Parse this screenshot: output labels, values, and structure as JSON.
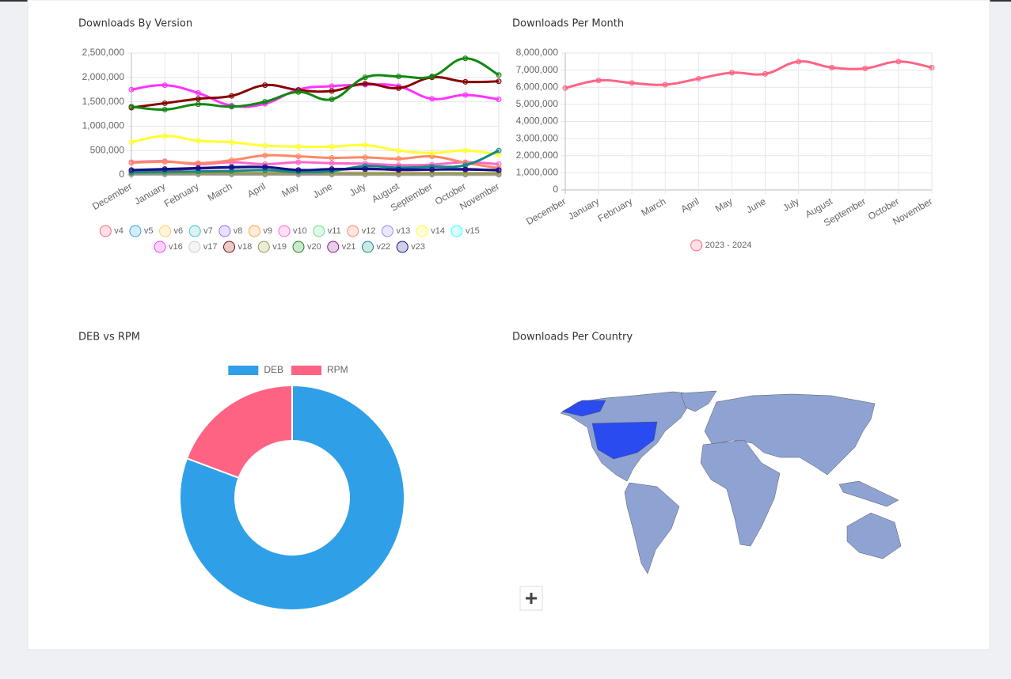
{
  "chart_data": [
    {
      "type": "line",
      "title": "Downloads By Version",
      "categories": [
        "December",
        "January",
        "February",
        "March",
        "April",
        "May",
        "June",
        "July",
        "August",
        "September",
        "October",
        "November"
      ],
      "ylim": [
        0,
        2500000
      ],
      "yticks": [
        0,
        {
          "value": 500000,
          "label": "500,000"
        },
        {
          "value": 1000000,
          "label": "1,000,000"
        },
        {
          "value": 1500000,
          "label": "1,500,000"
        },
        {
          "value": 2000000,
          "label": "2,000,000"
        },
        {
          "value": 2500000,
          "label": "2,500,000"
        }
      ],
      "grid": true,
      "legend": "bottom",
      "series": [
        {
          "name": "v4",
          "color": "#ff6384",
          "values": [
            10000,
            10000,
            10000,
            8000,
            8000,
            7000,
            6000,
            6000,
            5000,
            5000,
            5000,
            4000
          ]
        },
        {
          "name": "v5",
          "color": "#36a2eb",
          "values": [
            15000,
            15000,
            14000,
            13000,
            12000,
            12000,
            11000,
            10000,
            10000,
            9000,
            9000,
            8000
          ]
        },
        {
          "name": "v6",
          "color": "#ffcd56",
          "values": [
            20000,
            20000,
            19000,
            18000,
            17000,
            16000,
            15000,
            14000,
            13000,
            12000,
            12000,
            11000
          ]
        },
        {
          "name": "v7",
          "color": "#4bc0c0",
          "values": [
            25000,
            25000,
            24000,
            23000,
            22000,
            20000,
            19000,
            18000,
            17000,
            16000,
            15000,
            14000
          ]
        },
        {
          "name": "v8",
          "color": "#9966ff",
          "values": [
            30000,
            30000,
            29000,
            28000,
            27000,
            25000,
            24000,
            22000,
            21000,
            20000,
            19000,
            18000
          ]
        },
        {
          "name": "v9",
          "color": "#ff9f40",
          "values": [
            35000,
            35000,
            34000,
            33000,
            32000,
            30000,
            29000,
            27000,
            26000,
            25000,
            24000,
            22000
          ]
        },
        {
          "name": "v10",
          "color": "#ff66cc",
          "values": [
            260000,
            280000,
            220000,
            260000,
            220000,
            260000,
            240000,
            230000,
            200000,
            210000,
            260000,
            220000
          ]
        },
        {
          "name": "v11",
          "color": "#66dd88",
          "values": [
            40000,
            40000,
            39000,
            38000,
            37000,
            35000,
            34000,
            32000,
            30000,
            29000,
            28000,
            26000
          ]
        },
        {
          "name": "v12",
          "color": "#ff8866",
          "values": [
            250000,
            270000,
            240000,
            300000,
            400000,
            380000,
            350000,
            360000,
            330000,
            380000,
            250000,
            140000
          ]
        },
        {
          "name": "v13",
          "color": "#9988ee",
          "values": [
            45000,
            45000,
            44000,
            43000,
            42000,
            40000,
            39000,
            37000,
            35000,
            34000,
            33000,
            31000
          ]
        },
        {
          "name": "v14",
          "color": "#ffff33",
          "values": [
            670000,
            800000,
            700000,
            670000,
            600000,
            580000,
            580000,
            610000,
            500000,
            450000,
            500000,
            420000
          ]
        },
        {
          "name": "v15",
          "color": "#33ffff",
          "values": [
            50000,
            50000,
            49000,
            48000,
            47000,
            45000,
            44000,
            42000,
            40000,
            39000,
            38000,
            36000
          ]
        },
        {
          "name": "v16",
          "color": "#ff33ff",
          "values": [
            1750000,
            1840000,
            1680000,
            1420000,
            1460000,
            1750000,
            1820000,
            1850000,
            1820000,
            1560000,
            1640000,
            1550000
          ]
        },
        {
          "name": "v17",
          "color": "#cccccc",
          "values": [
            55000,
            55000,
            54000,
            53000,
            52000,
            50000,
            49000,
            47000,
            45000,
            44000,
            43000,
            41000
          ]
        },
        {
          "name": "v18",
          "color": "#880000",
          "values": [
            1380000,
            1470000,
            1560000,
            1620000,
            1840000,
            1740000,
            1720000,
            1870000,
            1780000,
            2000000,
            1910000,
            1920000
          ]
        },
        {
          "name": "v19",
          "color": "#999944",
          "values": [
            30000,
            32000,
            33000,
            34000,
            35000,
            33000,
            32000,
            31000,
            30000,
            30000,
            29000,
            28000
          ]
        },
        {
          "name": "v20",
          "color": "#118811",
          "values": [
            1400000,
            1340000,
            1450000,
            1400000,
            1500000,
            1700000,
            1550000,
            2000000,
            2020000,
            2020000,
            2390000,
            2050000
          ]
        },
        {
          "name": "v21",
          "color": "#881188",
          "values": [
            80000,
            100000,
            130000,
            150000,
            160000,
            100000,
            100000,
            130000,
            100000,
            110000,
            120000,
            90000
          ]
        },
        {
          "name": "v22",
          "color": "#118888",
          "values": [
            50000,
            60000,
            70000,
            80000,
            100000,
            60000,
            80000,
            180000,
            150000,
            170000,
            200000,
            500000
          ]
        },
        {
          "name": "v23",
          "color": "#111188",
          "values": [
            100000,
            120000,
            140000,
            160000,
            160000,
            100000,
            120000,
            120000,
            110000,
            110000,
            110000,
            100000
          ]
        }
      ]
    },
    {
      "type": "line",
      "title": "Downloads Per Month",
      "categories": [
        "December",
        "January",
        "February",
        "March",
        "April",
        "May",
        "June",
        "July",
        "August",
        "September",
        "October",
        "November"
      ],
      "ylim": [
        0,
        8000000
      ],
      "yticks": [
        0,
        {
          "value": 1000000,
          "label": "1,000,000"
        },
        {
          "value": 2000000,
          "label": "2,000,000"
        },
        {
          "value": 3000000,
          "label": "3,000,000"
        },
        {
          "value": 4000000,
          "label": "4,000,000"
        },
        {
          "value": 5000000,
          "label": "5,000,000"
        },
        {
          "value": 6000000,
          "label": "6,000,000"
        },
        {
          "value": 7000000,
          "label": "7,000,000"
        },
        {
          "value": 8000000,
          "label": "8,000,000"
        }
      ],
      "grid": true,
      "legend": "bottom",
      "series": [
        {
          "name": "2023 - 2024",
          "color": "#ff6384",
          "values": [
            5950000,
            6400000,
            6250000,
            6150000,
            6500000,
            6850000,
            6780000,
            7500000,
            7150000,
            7100000,
            7500000,
            7150000
          ]
        }
      ]
    },
    {
      "type": "doughnut",
      "title": "DEB vs RPM",
      "legend": "top",
      "categories": [
        "DEB",
        "RPM"
      ],
      "values": [
        80.7,
        19.3
      ],
      "colors": [
        "#2fa0e8",
        "#ff6384"
      ]
    },
    {
      "type": "map",
      "title": "Downloads Per Country"
    }
  ]
}
